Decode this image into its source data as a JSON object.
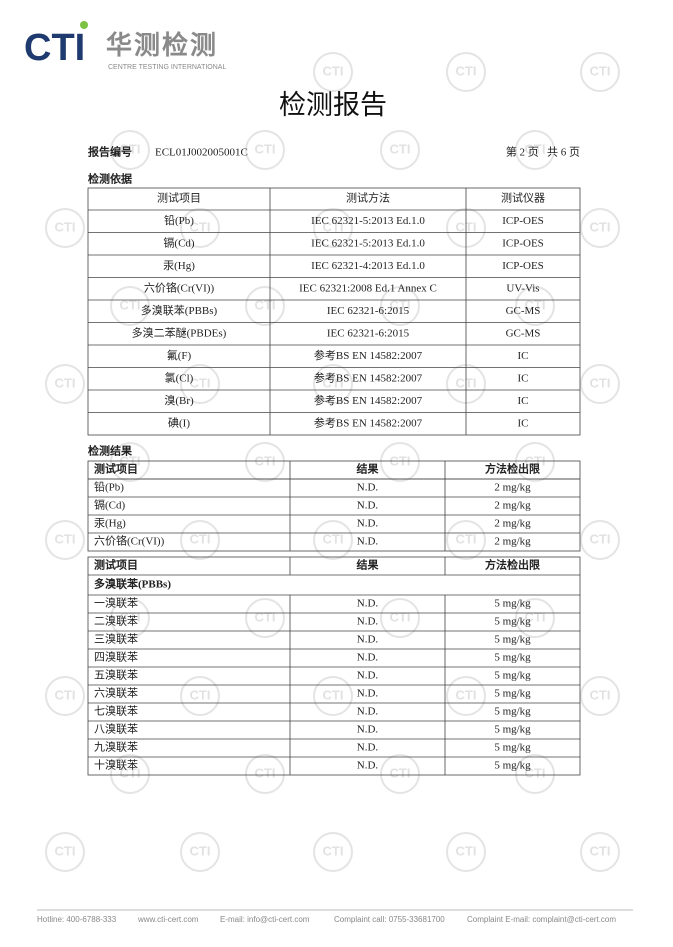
{
  "header": {
    "logo": "CTI",
    "brand_cn": "华测检测",
    "brand_en": "CENTRE TESTING INTERNATIONAL"
  },
  "watermark": "CTI",
  "title": "检测报告",
  "report_no_label": "报告编号",
  "report_no": "ECL01J002005001C",
  "page_info": "第 2 页   共 6 页",
  "basis": {
    "heading": "检测依据",
    "columns": [
      "测试项目",
      "测试方法",
      "测试仪器"
    ],
    "rows": [
      [
        "铅(Pb)",
        "IEC 62321-5:2013 Ed.1.0",
        "ICP-OES"
      ],
      [
        "镉(Cd)",
        "IEC 62321-5:2013 Ed.1.0",
        "ICP-OES"
      ],
      [
        "汞(Hg)",
        "IEC 62321-4:2013 Ed.1.0",
        "ICP-OES"
      ],
      [
        "六价铬(Cr(VI))",
        "IEC 62321:2008 Ed.1 Annex C",
        "UV-Vis"
      ],
      [
        "多溴联苯(PBBs)",
        "IEC 62321-6:2015",
        "GC-MS"
      ],
      [
        "多溴二苯醚(PBDEs)",
        "IEC 62321-6:2015",
        "GC-MS"
      ],
      [
        "氟(F)",
        "参考BS EN 14582:2007",
        "IC"
      ],
      [
        "氯(Cl)",
        "参考BS EN 14582:2007",
        "IC"
      ],
      [
        "溴(Br)",
        "参考BS EN 14582:2007",
        "IC"
      ],
      [
        "碘(I)",
        "参考BS EN 14582:2007",
        "IC"
      ]
    ]
  },
  "results": {
    "heading": "检测结果",
    "table1": {
      "columns": [
        "测试项目",
        "结果",
        "方法检出限"
      ],
      "rows": [
        [
          "铅(Pb)",
          "N.D.",
          "2 mg/kg"
        ],
        [
          "镉(Cd)",
          "N.D.",
          "2 mg/kg"
        ],
        [
          "汞(Hg)",
          "N.D.",
          "2 mg/kg"
        ],
        [
          "六价铬(Cr(VI))",
          "N.D.",
          "2 mg/kg"
        ]
      ]
    },
    "table2": {
      "columns": [
        "测试项目",
        "结果",
        "方法检出限"
      ],
      "group": "多溴联苯(PBBs)",
      "rows": [
        [
          "一溴联苯",
          "N.D.",
          "5 mg/kg"
        ],
        [
          "二溴联苯",
          "N.D.",
          "5 mg/kg"
        ],
        [
          "三溴联苯",
          "N.D.",
          "5 mg/kg"
        ],
        [
          "四溴联苯",
          "N.D.",
          "5 mg/kg"
        ],
        [
          "五溴联苯",
          "N.D.",
          "5 mg/kg"
        ],
        [
          "六溴联苯",
          "N.D.",
          "5 mg/kg"
        ],
        [
          "七溴联苯",
          "N.D.",
          "5 mg/kg"
        ],
        [
          "八溴联苯",
          "N.D.",
          "5 mg/kg"
        ],
        [
          "九溴联苯",
          "N.D.",
          "5 mg/kg"
        ],
        [
          "十溴联苯",
          "N.D.",
          "5 mg/kg"
        ]
      ]
    }
  },
  "footer": [
    "Hotline: 400-6788-333",
    "www.cti-cert.com",
    "E-mail: info@cti-cert.com",
    "Complaint call: 0755-33681700",
    "Complaint E-mail: complaint@cti-cert.com"
  ]
}
